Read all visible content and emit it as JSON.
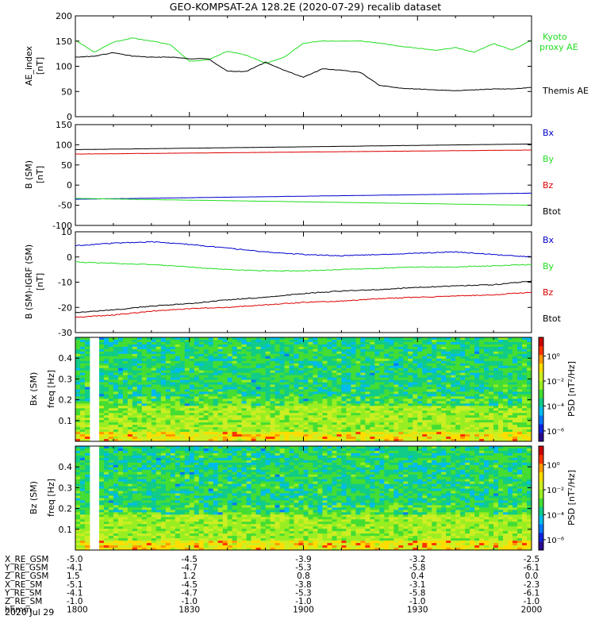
{
  "title": "GEO-KOMPSAT-2A 128.2E (2020-07-29) recalib dataset",
  "colors": {
    "black": "#000000",
    "green": "#22dd22",
    "blue": "#0000cc",
    "red": "#dd0000"
  },
  "chart_data": [
    {
      "type": "line",
      "ylabel_lines": [
        "AE_index",
        "[nT]"
      ],
      "ylim": [
        0,
        200
      ],
      "yticks": [
        0,
        50,
        100,
        150,
        200
      ],
      "x": [
        0,
        5,
        10,
        15,
        20,
        25,
        30,
        35,
        40,
        45,
        50,
        55,
        60,
        65,
        70,
        75,
        80,
        85,
        90,
        95,
        100,
        105,
        110,
        115,
        120
      ],
      "series": [
        {
          "name": "Kyoto proxy AE",
          "label_lines": [
            "Kyoto",
            "proxy AE"
          ],
          "color": "#22dd22",
          "values": [
            152,
            128,
            148,
            156,
            150,
            143,
            110,
            113,
            130,
            122,
            106,
            118,
            146,
            150,
            150,
            150,
            146,
            140,
            136,
            132,
            137,
            128,
            145,
            132,
            152
          ]
        },
        {
          "name": "Themis AE",
          "label_lines": [
            "Themis AE"
          ],
          "color": "#000000",
          "values": [
            118,
            120,
            127,
            120,
            118,
            118,
            115,
            115,
            90,
            90,
            108,
            92,
            78,
            95,
            92,
            88,
            62,
            57,
            55,
            53,
            52,
            53,
            55,
            55,
            58
          ]
        }
      ]
    },
    {
      "type": "line",
      "ylabel_lines": [
        "B (SM)",
        "[nT]"
      ],
      "ylim": [
        -100,
        150
      ],
      "yticks": [
        -100,
        -50,
        0,
        50,
        100,
        150
      ],
      "x": [
        0,
        120
      ],
      "series": [
        {
          "name": "Bx",
          "color": "#0000cc",
          "values": [
            -35,
            -20
          ]
        },
        {
          "name": "By",
          "color": "#22dd22",
          "values": [
            -33,
            -50
          ]
        },
        {
          "name": "Bz",
          "color": "#dd0000",
          "values": [
            77,
            87
          ]
        },
        {
          "name": "Btot",
          "color": "#000000",
          "values": [
            88,
            102
          ]
        }
      ]
    },
    {
      "type": "line",
      "ylabel_lines": [
        "B (SM)-IGRF (SM)",
        "[nT]"
      ],
      "ylim": [
        -30,
        10
      ],
      "yticks": [
        -30,
        -20,
        -10,
        0,
        10
      ],
      "x": [
        0,
        10,
        20,
        30,
        40,
        50,
        60,
        70,
        80,
        90,
        100,
        110,
        120
      ],
      "series": [
        {
          "name": "Bx",
          "color": "#0000cc",
          "values": [
            4.5,
            5.5,
            6,
            5,
            3.5,
            2,
            1,
            0.5,
            1,
            1.5,
            2,
            1,
            0
          ]
        },
        {
          "name": "By",
          "color": "#22dd22",
          "values": [
            -2,
            -2.5,
            -3,
            -4,
            -5,
            -5.5,
            -5.5,
            -5,
            -4.5,
            -4,
            -4,
            -3.5,
            -3
          ]
        },
        {
          "name": "Bz",
          "color": "#dd0000",
          "values": [
            -24,
            -23,
            -21.5,
            -20.5,
            -20,
            -19,
            -18,
            -17.5,
            -16.5,
            -16,
            -15.5,
            -15,
            -14
          ]
        },
        {
          "name": "Btot",
          "color": "#000000",
          "values": [
            -22,
            -21,
            -19.5,
            -18.5,
            -17,
            -16,
            -14.5,
            -13.5,
            -13,
            -12,
            -11.5,
            -11,
            -9.5
          ]
        }
      ]
    },
    {
      "type": "heatmap",
      "ylabel_lines": [
        "Bx (SM)",
        "freq [Hz]"
      ],
      "ylim": [
        0,
        0.5
      ],
      "yticks": [
        0.1,
        0.2,
        0.3,
        0.4
      ],
      "colorbar_label": "PSD [nT²/Hz]",
      "colorbar_ticks": [
        "10⁰",
        "10⁻²",
        "10⁻⁴",
        "10⁻⁶"
      ],
      "gap_minutes": [
        3,
        6
      ],
      "low_freq_band_hz": [
        0,
        0.17
      ]
    },
    {
      "type": "heatmap",
      "ylabel_lines": [
        "Bz (SM)",
        "freq [Hz]"
      ],
      "ylim": [
        0,
        0.5
      ],
      "yticks": [
        0.1,
        0.2,
        0.3,
        0.4
      ],
      "colorbar_label": "PSD [nT²/Hz]",
      "colorbar_ticks": [
        "10⁰",
        "10⁻²",
        "10⁻⁴",
        "10⁻⁶"
      ],
      "gap_minutes": [
        3,
        6
      ],
      "low_freq_band_hz": [
        0,
        0.17
      ]
    }
  ],
  "x_axis": {
    "minutes": [
      0,
      30,
      60,
      90,
      120
    ],
    "rows": [
      {
        "label": "X_RE_GSM",
        "values": [
          "-5.0",
          "-4.5",
          "-3.9",
          "-3.2",
          "-2.5"
        ]
      },
      {
        "label": "Y_RE_GSM",
        "values": [
          "-4.1",
          "-4.7",
          "-5.3",
          "-5.8",
          "-6.1"
        ]
      },
      {
        "label": "Z_RE_GSM",
        "values": [
          "1.5",
          "1.2",
          "0.8",
          "0.4",
          "0.0"
        ]
      },
      {
        "label": "X_RE_SM",
        "values": [
          "-5.1",
          "-4.5",
          "-3.8",
          "-3.1",
          "-2.3"
        ]
      },
      {
        "label": "Y_RE_SM",
        "values": [
          "-4.1",
          "-4.7",
          "-5.3",
          "-5.8",
          "-6.1"
        ]
      },
      {
        "label": "Z_RE_SM",
        "values": [
          "-1.0",
          "-1.0",
          "-1.0",
          "-1.0",
          "-1.0"
        ]
      },
      {
        "label": "hhmm",
        "values": [
          "1800",
          "1830",
          "1900",
          "1930",
          "2000"
        ]
      }
    ],
    "date": "2020 Jul 29"
  }
}
